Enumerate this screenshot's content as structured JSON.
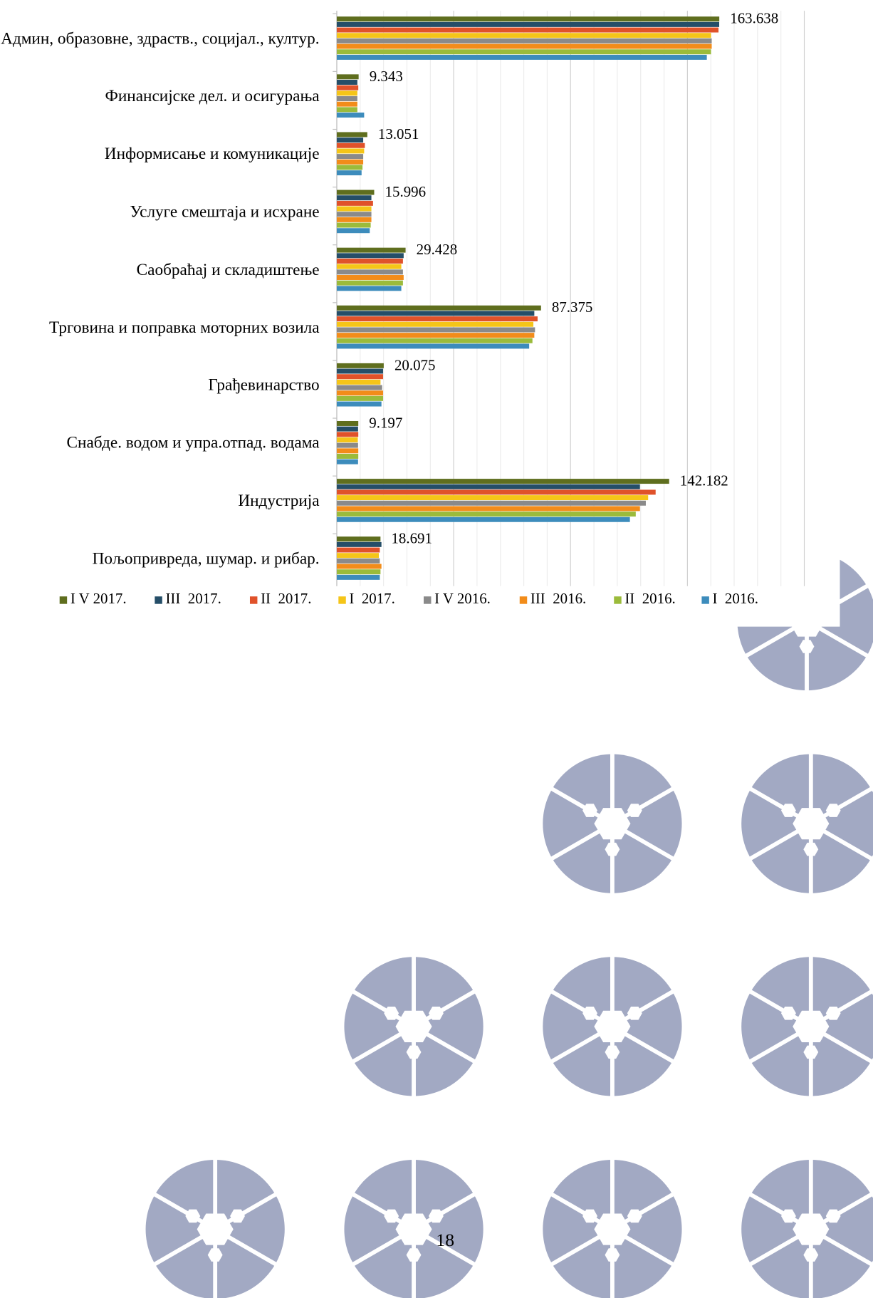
{
  "chart_data": {
    "type": "barh",
    "categories": [
      "Админ, образовне, здраств., социјал., култур.",
      "Финансијске дел. и  осигурања",
      "Информисање и комуникације",
      "Услуге смештаја и исхране",
      "Саобраћај и складиштење",
      "Трговина и поправка моторних возила",
      "Грађевинарство",
      "Снабде. водом и упра.отпад. водама",
      "Индустрија",
      "Пољопривреда, шумар. и рибар."
    ],
    "series": [
      {
        "name": "I V 2017.",
        "color": "#5f6e1e",
        "data_labels": true,
        "values": [
          163.638,
          9.343,
          13.051,
          15.996,
          29.428,
          87.375,
          20.075,
          9.197,
          142.182,
          18.691
        ]
      },
      {
        "name": "III  2017.",
        "color": "#254e68",
        "values": [
          163.6,
          8.8,
          11.3,
          14.8,
          28.6,
          84.5,
          19.8,
          9.1,
          129.7,
          19.1
        ]
      },
      {
        "name": "II  2017.",
        "color": "#e0522a",
        "values": [
          163.3,
          9.2,
          12.0,
          15.5,
          28.3,
          85.9,
          19.8,
          9.2,
          136.4,
          18.4
        ]
      },
      {
        "name": "I  2017.",
        "color": "#f5c518",
        "values": [
          160.1,
          8.8,
          11.7,
          14.8,
          27.6,
          84.1,
          18.7,
          9.0,
          133.2,
          18.0
        ]
      },
      {
        "name": "I V 2016.",
        "color": "#8a8a8a",
        "values": [
          160.4,
          8.8,
          11.3,
          14.8,
          28.3,
          84.8,
          19.4,
          9.1,
          132.2,
          18.4
        ]
      },
      {
        "name": "III  2016.",
        "color": "#f28c1a",
        "values": [
          160.4,
          8.8,
          11.3,
          14.8,
          28.6,
          84.5,
          19.8,
          9.2,
          129.7,
          19.1
        ]
      },
      {
        "name": "II  2016.",
        "color": "#9bbb3b",
        "values": [
          160.1,
          8.8,
          11.0,
          14.5,
          28.3,
          83.7,
          19.8,
          9.2,
          127.9,
          18.7
        ]
      },
      {
        "name": "I  2016.",
        "color": "#3d8cbc",
        "values": [
          158.3,
          11.7,
          10.6,
          14.1,
          27.6,
          82.3,
          19.1,
          9.1,
          125.4,
          18.4
        ]
      }
    ],
    "xlim": [
      0,
      200
    ],
    "xgrid": [
      0,
      10,
      20,
      30,
      40,
      50,
      60,
      70,
      80,
      90,
      100,
      110,
      120,
      130,
      140,
      150,
      160,
      170,
      180,
      190,
      200
    ],
    "legend": "bottom"
  },
  "page_number": "18"
}
